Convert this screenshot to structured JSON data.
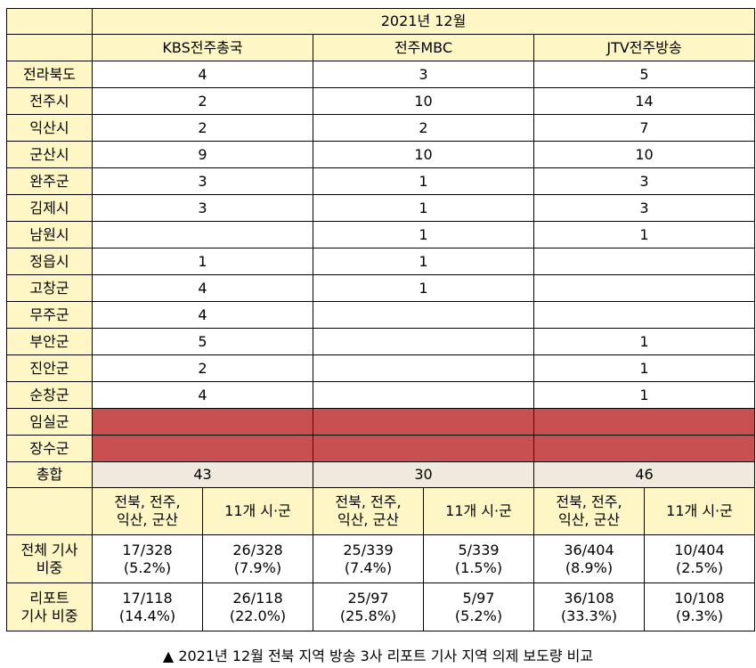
{
  "header": {
    "period": "2021년 12월"
  },
  "stations": [
    "KBS전주총국",
    "전주MBC",
    "JTV전주방송"
  ],
  "regions": [
    {
      "name": "전라북도",
      "values": [
        "4",
        "3",
        "5"
      ]
    },
    {
      "name": "전주시",
      "values": [
        "2",
        "10",
        "14"
      ]
    },
    {
      "name": "익산시",
      "values": [
        "2",
        "2",
        "7"
      ]
    },
    {
      "name": "군산시",
      "values": [
        "9",
        "10",
        "10"
      ]
    },
    {
      "name": "완주군",
      "values": [
        "3",
        "1",
        "3"
      ]
    },
    {
      "name": "김제시",
      "values": [
        "3",
        "1",
        "3"
      ]
    },
    {
      "name": "남원시",
      "values": [
        "",
        "1",
        "1"
      ]
    },
    {
      "name": "정읍시",
      "values": [
        "1",
        "1",
        ""
      ]
    },
    {
      "name": "고창군",
      "values": [
        "4",
        "1",
        ""
      ]
    },
    {
      "name": "무주군",
      "values": [
        "4",
        "",
        ""
      ]
    },
    {
      "name": "부안군",
      "values": [
        "5",
        "",
        "1"
      ]
    },
    {
      "name": "진안군",
      "values": [
        "2",
        "",
        "1"
      ]
    },
    {
      "name": "순창군",
      "values": [
        "4",
        "",
        "1"
      ]
    },
    {
      "name": "임실군",
      "values": [
        "",
        "",
        ""
      ]
    },
    {
      "name": "장수군",
      "values": [
        "",
        "",
        ""
      ]
    }
  ],
  "total": {
    "label": "총합",
    "values": [
      "43",
      "30",
      "46"
    ]
  },
  "sub_headers": {
    "group_a_line1": "전북, 전주,",
    "group_a_line2": "익산, 군산",
    "group_b": "11개 시·군"
  },
  "share_all": {
    "label_line1": "전체 기사",
    "label_line2": "비중",
    "values": [
      [
        "17/328",
        "(5.2%)"
      ],
      [
        "26/328",
        "(7.9%)"
      ],
      [
        "25/339",
        "(7.4%)"
      ],
      [
        "5/339",
        "(1.5%)"
      ],
      [
        "36/404",
        "(8.9%)"
      ],
      [
        "10/404",
        "(2.5%)"
      ]
    ]
  },
  "share_report": {
    "label_line1": "리포트",
    "label_line2": "기사 비중",
    "values": [
      [
        "17/118",
        "(14.4%)"
      ],
      [
        "26/118",
        "(22.0%)"
      ],
      [
        "25/97",
        "(25.8%)"
      ],
      [
        "5/97",
        "(5.2%)"
      ],
      [
        "36/108",
        "(33.3%)"
      ],
      [
        "10/108",
        "(9.3%)"
      ]
    ]
  },
  "caption": "▲ 2021년 12월 전북 지역 방송 3사 리포트 기사 지역 의제 보도량 비교",
  "colors": {
    "header_bg": "#fef6c4",
    "no_coverage_bg": "#c95050",
    "total_bg": "#efeadd"
  }
}
